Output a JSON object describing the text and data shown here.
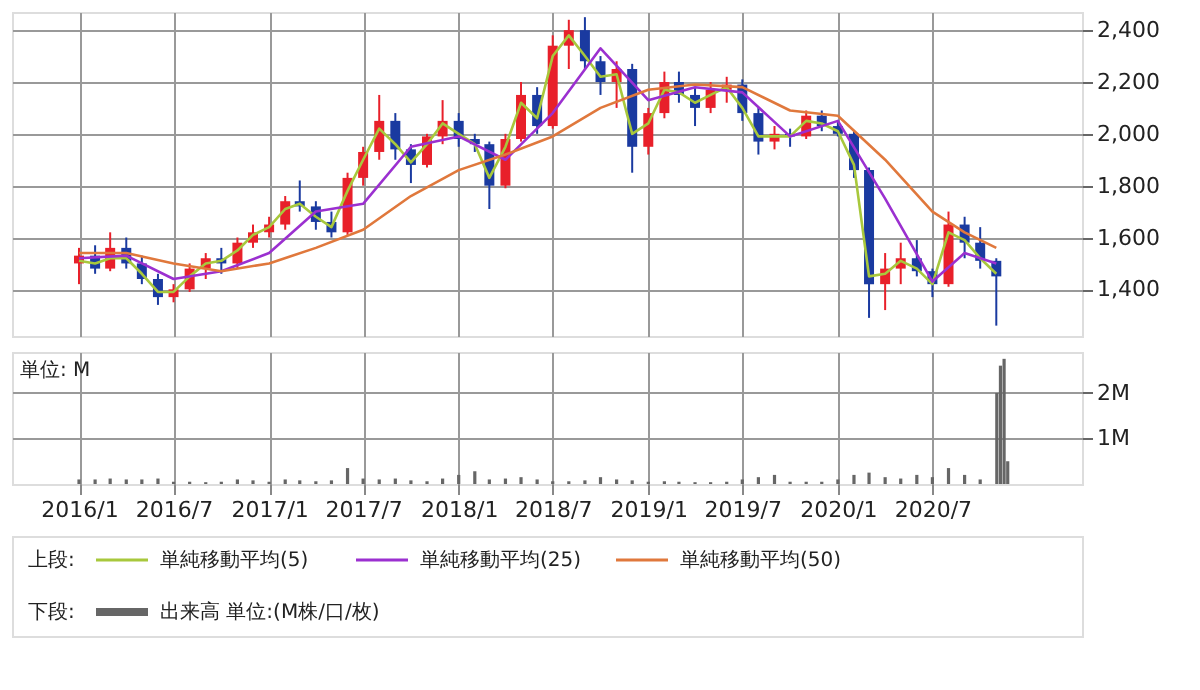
{
  "chart_data": [
    {
      "type": "candlestick",
      "legend_title": "上段:",
      "legend": "bottom",
      "grid": true,
      "tick_labels": "y",
      "x": [
        "2016-01",
        "2016-02",
        "2016-03",
        "2016-04",
        "2016-05",
        "2016-06",
        "2016-07",
        "2016-08",
        "2016-09",
        "2016-10",
        "2016-11",
        "2016-12",
        "2017-01",
        "2017-02",
        "2017-03",
        "2017-04",
        "2017-05",
        "2017-06",
        "2017-07",
        "2017-08",
        "2017-09",
        "2017-10",
        "2017-11",
        "2017-12",
        "2018-01",
        "2018-02",
        "2018-03",
        "2018-04",
        "2018-05",
        "2018-06",
        "2018-07",
        "2018-08",
        "2018-09",
        "2018-10",
        "2018-11",
        "2018-12",
        "2019-01",
        "2019-02",
        "2019-03",
        "2019-04",
        "2019-05",
        "2019-06",
        "2019-07",
        "2019-08",
        "2019-09",
        "2019-10",
        "2019-11",
        "2019-12",
        "2020-01",
        "2020-02",
        "2020-03",
        "2020-04",
        "2020-05",
        "2020-06",
        "2020-07",
        "2020-08",
        "2020-09",
        "2020-10",
        "2020-11"
      ],
      "ohlc": [
        [
          1500,
          1560,
          1420,
          1530
        ],
        [
          1530,
          1570,
          1460,
          1480
        ],
        [
          1480,
          1620,
          1470,
          1560
        ],
        [
          1560,
          1600,
          1480,
          1500
        ],
        [
          1500,
          1530,
          1420,
          1440
        ],
        [
          1440,
          1460,
          1340,
          1370
        ],
        [
          1370,
          1420,
          1350,
          1400
        ],
        [
          1400,
          1500,
          1390,
          1480
        ],
        [
          1480,
          1540,
          1440,
          1520
        ],
        [
          1520,
          1560,
          1460,
          1500
        ],
        [
          1500,
          1600,
          1480,
          1580
        ],
        [
          1580,
          1650,
          1560,
          1620
        ],
        [
          1620,
          1680,
          1600,
          1650
        ],
        [
          1650,
          1760,
          1630,
          1740
        ],
        [
          1740,
          1820,
          1700,
          1720
        ],
        [
          1720,
          1740,
          1630,
          1660
        ],
        [
          1660,
          1700,
          1600,
          1620
        ],
        [
          1620,
          1850,
          1610,
          1830
        ],
        [
          1830,
          1950,
          1800,
          1930
        ],
        [
          1930,
          2150,
          1900,
          2050
        ],
        [
          2050,
          2080,
          1900,
          1940
        ],
        [
          1940,
          1960,
          1810,
          1880
        ],
        [
          1880,
          2000,
          1870,
          1990
        ],
        [
          1990,
          2130,
          1960,
          2050
        ],
        [
          2050,
          2080,
          1950,
          1980
        ],
        [
          1980,
          2000,
          1930,
          1960
        ],
        [
          1960,
          1970,
          1710,
          1800
        ],
        [
          1800,
          2000,
          1790,
          1980
        ],
        [
          1980,
          2200,
          1970,
          2150
        ],
        [
          2150,
          2180,
          2000,
          2030
        ],
        [
          2030,
          2380,
          2020,
          2340
        ],
        [
          2340,
          2440,
          2250,
          2400
        ],
        [
          2400,
          2450,
          2250,
          2280
        ],
        [
          2280,
          2300,
          2150,
          2200
        ],
        [
          2200,
          2280,
          2100,
          2250
        ],
        [
          2250,
          2270,
          1850,
          1950
        ],
        [
          1950,
          2100,
          1920,
          2080
        ],
        [
          2080,
          2240,
          2060,
          2200
        ],
        [
          2200,
          2240,
          2120,
          2150
        ],
        [
          2150,
          2180,
          2030,
          2100
        ],
        [
          2100,
          2200,
          2080,
          2170
        ],
        [
          2170,
          2220,
          2120,
          2190
        ],
        [
          2190,
          2210,
          2050,
          2080
        ],
        [
          2080,
          2100,
          1920,
          1970
        ],
        [
          1970,
          2030,
          1940,
          2000
        ],
        [
          2000,
          2020,
          1950,
          1990
        ],
        [
          1990,
          2090,
          1980,
          2070
        ],
        [
          2070,
          2090,
          2010,
          2030
        ],
        [
          2030,
          2050,
          1990,
          2000
        ],
        [
          2000,
          2010,
          1830,
          1860
        ],
        [
          1860,
          1870,
          1290,
          1420
        ],
        [
          1420,
          1540,
          1320,
          1480
        ],
        [
          1480,
          1580,
          1420,
          1520
        ],
        [
          1520,
          1590,
          1450,
          1470
        ],
        [
          1470,
          1480,
          1370,
          1420
        ],
        [
          1420,
          1700,
          1410,
          1650
        ],
        [
          1650,
          1680,
          1520,
          1580
        ],
        [
          1580,
          1640,
          1480,
          1510
        ],
        [
          1510,
          1520,
          1260,
          1450
        ]
      ],
      "xticks": [
        {
          "value": "2016-01",
          "label": null
        },
        {
          "value": "2016-07",
          "label": null
        },
        {
          "value": "2017-01",
          "label": null
        },
        {
          "value": "2017-07",
          "label": null
        },
        {
          "value": "2018-01",
          "label": null
        },
        {
          "value": "2018-07",
          "label": null
        },
        {
          "value": "2019-01",
          "label": null
        },
        {
          "value": "2019-07",
          "label": null
        },
        {
          "value": "2020-01",
          "label": null
        },
        {
          "value": "2020-07",
          "label": null
        }
      ],
      "series": [
        {
          "name": "単純移動平均(5)",
          "type": "line",
          "color": "#a8c83c",
          "values": [
            1510,
            1500,
            1520,
            1520,
            1460,
            1390,
            1390,
            1450,
            1500,
            1510,
            1550,
            1610,
            1640,
            1710,
            1730,
            1680,
            1640,
            1780,
            1900,
            2020,
            1960,
            1890,
            1960,
            2040,
            2000,
            1960,
            1830,
            1950,
            2120,
            2060,
            2300,
            2380,
            2300,
            2220,
            2230,
            2000,
            2040,
            2170,
            2160,
            2120,
            2150,
            2180,
            2100,
            1990,
            1990,
            1990,
            2050,
            2040,
            2010,
            1880,
            1450,
            1460,
            1510,
            1480,
            1420,
            1620,
            1590,
            1520,
            1460
          ]
        },
        {
          "name": "単純移動平均(25)",
          "type": "line",
          "color": "#9b30d0",
          "x": [
            "2016-01",
            "2016-04",
            "2016-07",
            "2016-10",
            "2017-01",
            "2017-04",
            "2017-07",
            "2017-10",
            "2018-01",
            "2018-04",
            "2018-07",
            "2018-10",
            "2019-01",
            "2019-04",
            "2019-07",
            "2019-10",
            "2020-01",
            "2020-04",
            "2020-07",
            "2020-09",
            "2020-11"
          ],
          "values": [
            1520,
            1530,
            1440,
            1470,
            1540,
            1700,
            1730,
            1950,
            1990,
            1900,
            2080,
            2330,
            2130,
            2180,
            2160,
            1990,
            2050,
            1750,
            1430,
            1540,
            1500
          ]
        },
        {
          "name": "単純移動平均(50)",
          "type": "line",
          "color": "#e0783c",
          "x": [
            "2016-01",
            "2016-04",
            "2016-07",
            "2016-10",
            "2017-01",
            "2017-04",
            "2017-07",
            "2017-10",
            "2018-01",
            "2018-04",
            "2018-07",
            "2018-10",
            "2019-01",
            "2019-04",
            "2019-07",
            "2019-10",
            "2020-01",
            "2020-04",
            "2020-07",
            "2020-09",
            "2020-11"
          ],
          "values": [
            1540,
            1540,
            1500,
            1470,
            1500,
            1560,
            1630,
            1760,
            1860,
            1920,
            1990,
            2100,
            2170,
            2190,
            2180,
            2090,
            2070,
            1900,
            1700,
            1620,
            1560
          ]
        }
      ],
      "xlim": [
        "2015-08-25",
        "2021-04-15"
      ],
      "ylim": [
        1220,
        2470
      ],
      "yticks": [
        {
          "value": 1400,
          "label": "1,400"
        },
        {
          "value": 1600,
          "label": "1,600"
        },
        {
          "value": 1800,
          "label": "1,800"
        },
        {
          "value": 2000,
          "label": "2,000"
        },
        {
          "value": 2200,
          "label": "2,200"
        },
        {
          "value": 2400,
          "label": "2,400"
        }
      ]
    },
    {
      "type": "bar",
      "legend_title": "下段:",
      "legend": "bottom",
      "grid": true,
      "annotations": [
        "単位: M"
      ],
      "x": [
        "2016-01",
        "2016-02",
        "2016-03",
        "2016-04",
        "2016-05",
        "2016-06",
        "2016-07",
        "2016-08",
        "2016-09",
        "2016-10",
        "2016-11",
        "2016-12",
        "2017-01",
        "2017-02",
        "2017-03",
        "2017-04",
        "2017-05",
        "2017-06",
        "2017-07",
        "2017-08",
        "2017-09",
        "2017-10",
        "2017-11",
        "2017-12",
        "2018-01",
        "2018-02",
        "2018-03",
        "2018-04",
        "2018-05",
        "2018-06",
        "2018-07",
        "2018-08",
        "2018-09",
        "2018-10",
        "2018-11",
        "2018-12",
        "2019-01",
        "2019-02",
        "2019-03",
        "2019-04",
        "2019-05",
        "2019-06",
        "2019-07",
        "2019-08",
        "2019-09",
        "2019-10",
        "2019-11",
        "2019-12",
        "2020-01",
        "2020-02",
        "2020-03",
        "2020-04",
        "2020-05",
        "2020-06",
        "2020-07",
        "2020-08",
        "2020-09",
        "2020-10",
        "2020-11-02",
        "2020-11-09",
        "2020-11-16",
        "2020-11-23"
      ],
      "series": [
        {
          "name": "出来高 単位:(M株/口/枚)",
          "color": "#666666",
          "values": [
            0.1,
            0.1,
            0.12,
            0.1,
            0.1,
            0.12,
            0.05,
            0.05,
            0.04,
            0.05,
            0.1,
            0.08,
            0.05,
            0.1,
            0.08,
            0.06,
            0.08,
            0.35,
            0.12,
            0.1,
            0.12,
            0.08,
            0.06,
            0.12,
            0.2,
            0.28,
            0.1,
            0.12,
            0.15,
            0.1,
            0.06,
            0.06,
            0.08,
            0.15,
            0.1,
            0.08,
            0.05,
            0.06,
            0.05,
            0.04,
            0.04,
            0.05,
            0.1,
            0.15,
            0.2,
            0.05,
            0.05,
            0.05,
            0.1,
            0.2,
            0.25,
            0.15,
            0.12,
            0.2,
            0.15,
            0.35,
            0.2,
            0.1,
            2.0,
            2.6,
            2.75,
            0.5
          ]
        }
      ],
      "xlim": [
        "2015-08-25",
        "2021-04-15"
      ],
      "xticks": [
        {
          "value": "2016-01",
          "label": "2016/1"
        },
        {
          "value": "2016-07",
          "label": "2016/7"
        },
        {
          "value": "2017-01",
          "label": "2017/1"
        },
        {
          "value": "2017-07",
          "label": "2017/7"
        },
        {
          "value": "2018-01",
          "label": "2018/1"
        },
        {
          "value": "2018-07",
          "label": "2018/7"
        },
        {
          "value": "2019-01",
          "label": "2019/1"
        },
        {
          "value": "2019-07",
          "label": "2019/7"
        },
        {
          "value": "2020-01",
          "label": "2020/1"
        },
        {
          "value": "2020-07",
          "label": "2020/7"
        }
      ],
      "ylim": [
        0,
        2.9
      ],
      "yticks": [
        {
          "value": 1,
          "label": "1M"
        },
        {
          "value": 2,
          "label": "2M"
        }
      ]
    }
  ]
}
